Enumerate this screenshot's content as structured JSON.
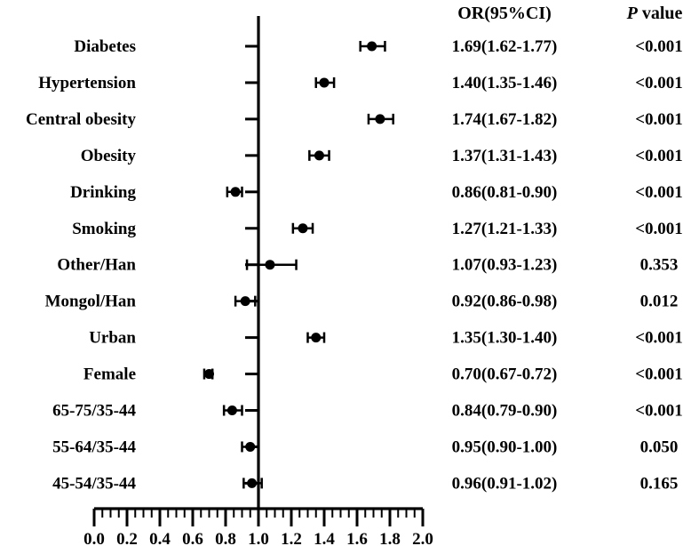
{
  "chart_data": {
    "type": "forest",
    "xlim": [
      0.0,
      2.0
    ],
    "reference_line": 1.0,
    "x_ticks": [
      "0.0",
      "0.2",
      "0.4",
      "0.6",
      "0.8",
      "1.0",
      "1.2",
      "1.4",
      "1.6",
      "1.8",
      "2.0"
    ],
    "headers": {
      "or": "OR(95%CI)",
      "p_italic": "P",
      "p_rest": " value"
    },
    "rows": [
      {
        "label": "Diabetes",
        "or": 1.69,
        "lo": 1.62,
        "hi": 1.77,
        "or_text": "1.69(1.62-1.77)",
        "p_text": "<0.001"
      },
      {
        "label": "Hypertension",
        "or": 1.4,
        "lo": 1.35,
        "hi": 1.46,
        "or_text": "1.40(1.35-1.46)",
        "p_text": "<0.001"
      },
      {
        "label": "Central obesity",
        "or": 1.74,
        "lo": 1.67,
        "hi": 1.82,
        "or_text": "1.74(1.67-1.82)",
        "p_text": "<0.001"
      },
      {
        "label": "Obesity",
        "or": 1.37,
        "lo": 1.31,
        "hi": 1.43,
        "or_text": "1.37(1.31-1.43)",
        "p_text": "<0.001"
      },
      {
        "label": "Drinking",
        "or": 0.86,
        "lo": 0.81,
        "hi": 0.9,
        "or_text": "0.86(0.81-0.90)",
        "p_text": "<0.001"
      },
      {
        "label": "Smoking",
        "or": 1.27,
        "lo": 1.21,
        "hi": 1.33,
        "or_text": "1.27(1.21-1.33)",
        "p_text": "<0.001"
      },
      {
        "label": "Other/Han",
        "or": 1.07,
        "lo": 0.93,
        "hi": 1.23,
        "or_text": "1.07(0.93-1.23)",
        "p_text": "0.353"
      },
      {
        "label": "Mongol/Han",
        "or": 0.92,
        "lo": 0.86,
        "hi": 0.98,
        "or_text": "0.92(0.86-0.98)",
        "p_text": "0.012"
      },
      {
        "label": "Urban",
        "or": 1.35,
        "lo": 1.3,
        "hi": 1.4,
        "or_text": "1.35(1.30-1.40)",
        "p_text": "<0.001"
      },
      {
        "label": "Female",
        "or": 0.7,
        "lo": 0.67,
        "hi": 0.72,
        "or_text": "0.70(0.67-0.72)",
        "p_text": "<0.001"
      },
      {
        "label": "65-75/35-44",
        "or": 0.84,
        "lo": 0.79,
        "hi": 0.9,
        "or_text": "0.84(0.79-0.90)",
        "p_text": "<0.001"
      },
      {
        "label": "55-64/35-44",
        "or": 0.95,
        "lo": 0.9,
        "hi": 1.0,
        "or_text": "0.95(0.90-1.00)",
        "p_text": "0.050"
      },
      {
        "label": "45-54/35-44",
        "or": 0.96,
        "lo": 0.91,
        "hi": 1.02,
        "or_text": "0.96(0.91-1.02)",
        "p_text": "0.165"
      }
    ]
  }
}
